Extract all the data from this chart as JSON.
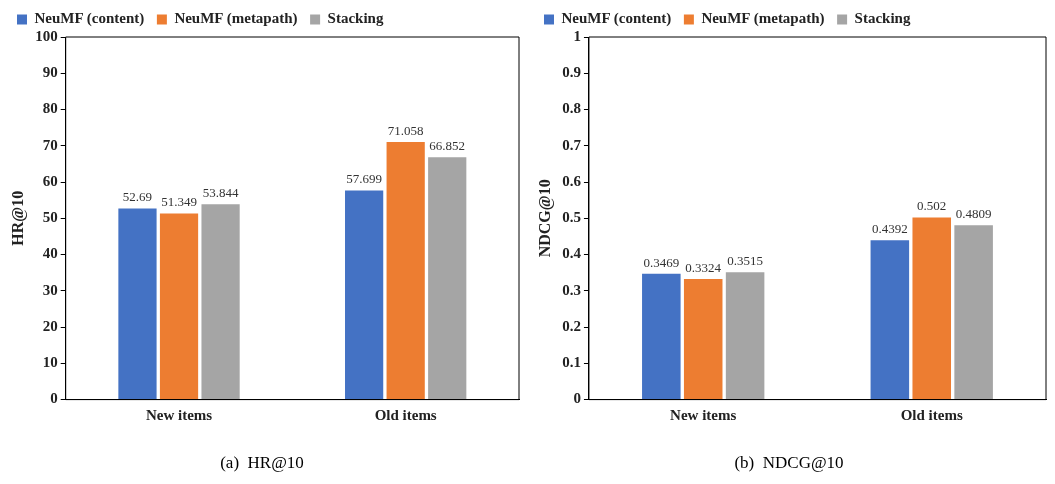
{
  "chart_data": [
    {
      "type": "bar",
      "title": "(a)  HR@10",
      "ylabel": "HR@10",
      "categories": [
        "New items",
        "Old items"
      ],
      "series": [
        {
          "name": "NeuMF (content)",
          "color": "#4472c4",
          "values": [
            52.69,
            57.699
          ]
        },
        {
          "name": "NeuMF (metapath)",
          "color": "#ed7d31",
          "values": [
            51.349,
            71.058
          ]
        },
        {
          "name": "Stacking",
          "color": "#a5a5a5",
          "values": [
            53.844,
            66.852
          ]
        }
      ],
      "ylim": [
        0,
        100
      ],
      "yticks": [
        0,
        10,
        20,
        30,
        40,
        50,
        60,
        70,
        80,
        90,
        100
      ],
      "grid": false,
      "legend": "top",
      "data_labels": true
    },
    {
      "type": "bar",
      "title": "(b)  NDCG@10",
      "ylabel": "NDCG@10",
      "categories": [
        "New items",
        "Old items"
      ],
      "series": [
        {
          "name": "NeuMF (content)",
          "color": "#4472c4",
          "values": [
            0.3469,
            0.4392
          ]
        },
        {
          "name": "NeuMF (metapath)",
          "color": "#ed7d31",
          "values": [
            0.3324,
            0.502
          ]
        },
        {
          "name": "Stacking",
          "color": "#a5a5a5",
          "values": [
            0.3515,
            0.4809
          ]
        }
      ],
      "ylim": [
        0,
        1
      ],
      "yticks": [
        0,
        0.1,
        0.2,
        0.3,
        0.4,
        0.5,
        0.6,
        0.7,
        0.8,
        0.9,
        1
      ],
      "grid": false,
      "legend": "top",
      "data_labels": true
    }
  ]
}
